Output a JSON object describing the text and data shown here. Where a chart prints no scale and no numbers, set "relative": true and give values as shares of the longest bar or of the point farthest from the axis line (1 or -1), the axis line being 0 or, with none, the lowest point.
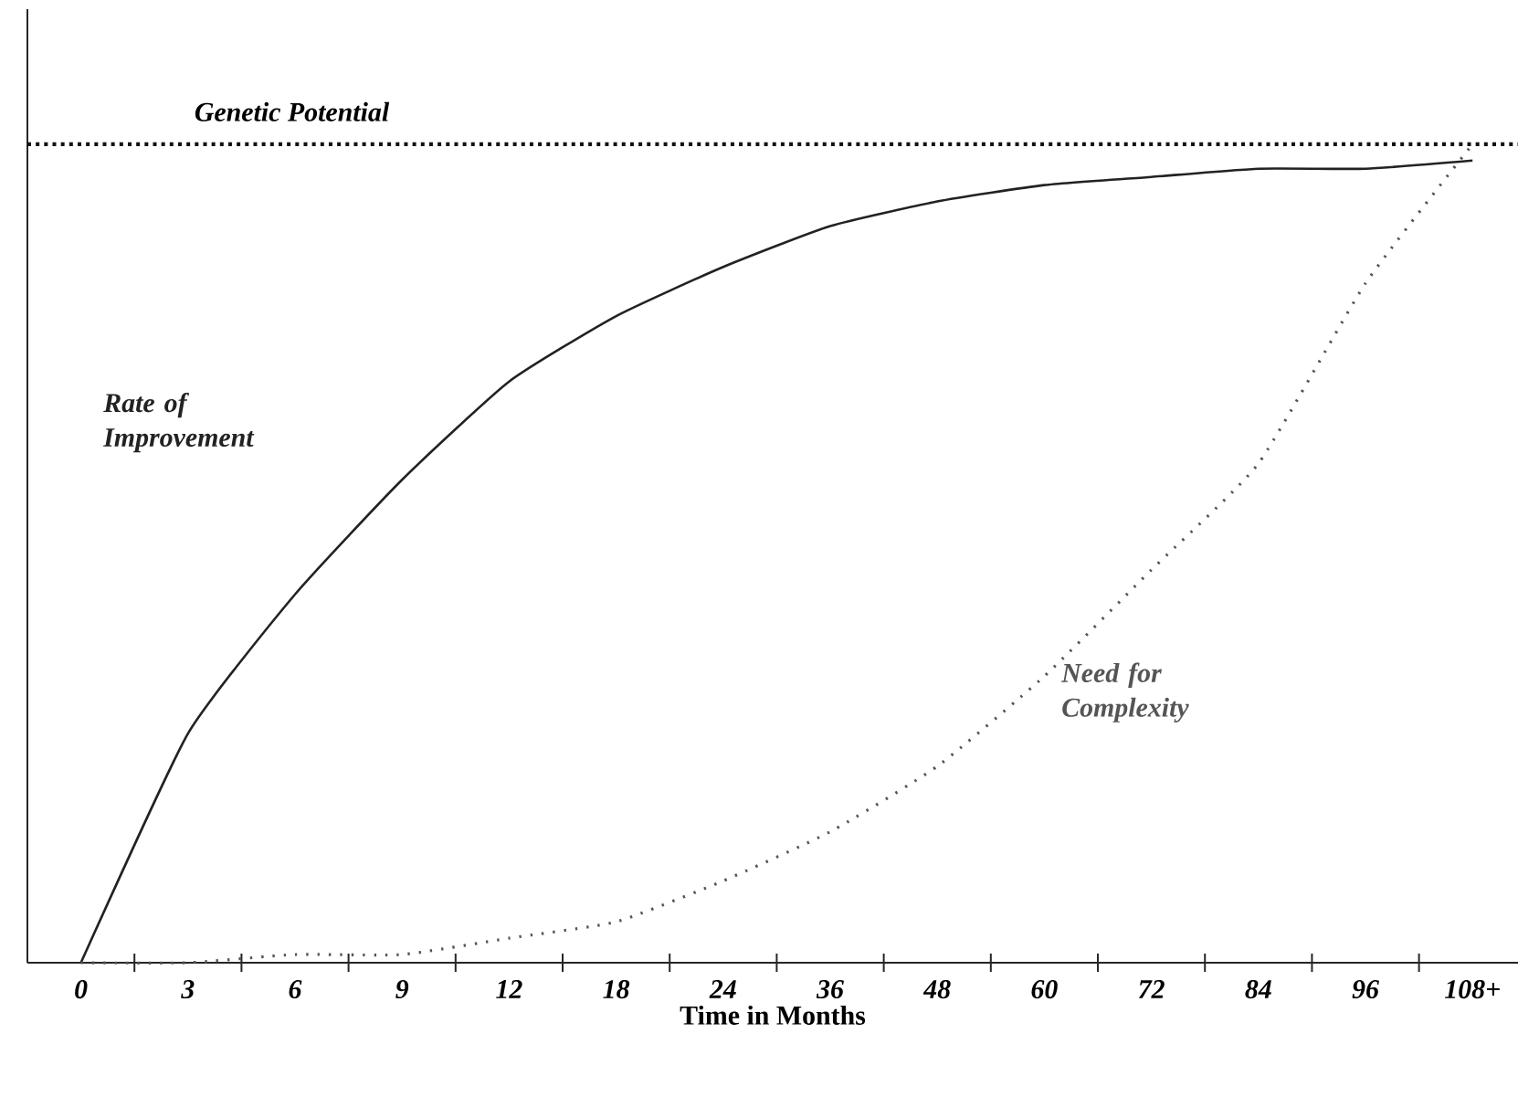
{
  "chart_data": {
    "type": "line",
    "relative": true,
    "xlabel": "Time in Months",
    "categories": [
      "0",
      "3",
      "6",
      "9",
      "12",
      "18",
      "24",
      "36",
      "48",
      "60",
      "72",
      "84",
      "96",
      "108+"
    ],
    "series": [
      {
        "name": "Rate of Improvement",
        "color": "#222222",
        "line_style": "solid",
        "values": [
          0,
          0.28,
          0.45,
          0.59,
          0.71,
          0.79,
          0.85,
          0.9,
          0.93,
          0.95,
          0.96,
          0.97,
          0.97,
          0.98
        ]
      },
      {
        "name": "Need for Complexity",
        "color": "#555555",
        "line_style": "dotted",
        "values": [
          0,
          0.0,
          0.01,
          0.01,
          0.03,
          0.05,
          0.1,
          0.16,
          0.24,
          0.35,
          0.48,
          0.61,
          0.83,
          1.0
        ]
      }
    ],
    "ref_lines": [
      {
        "axis": "y",
        "value": 1.0,
        "label": "Genetic Potential",
        "color": "#111111",
        "line_style": "dotted"
      }
    ]
  }
}
